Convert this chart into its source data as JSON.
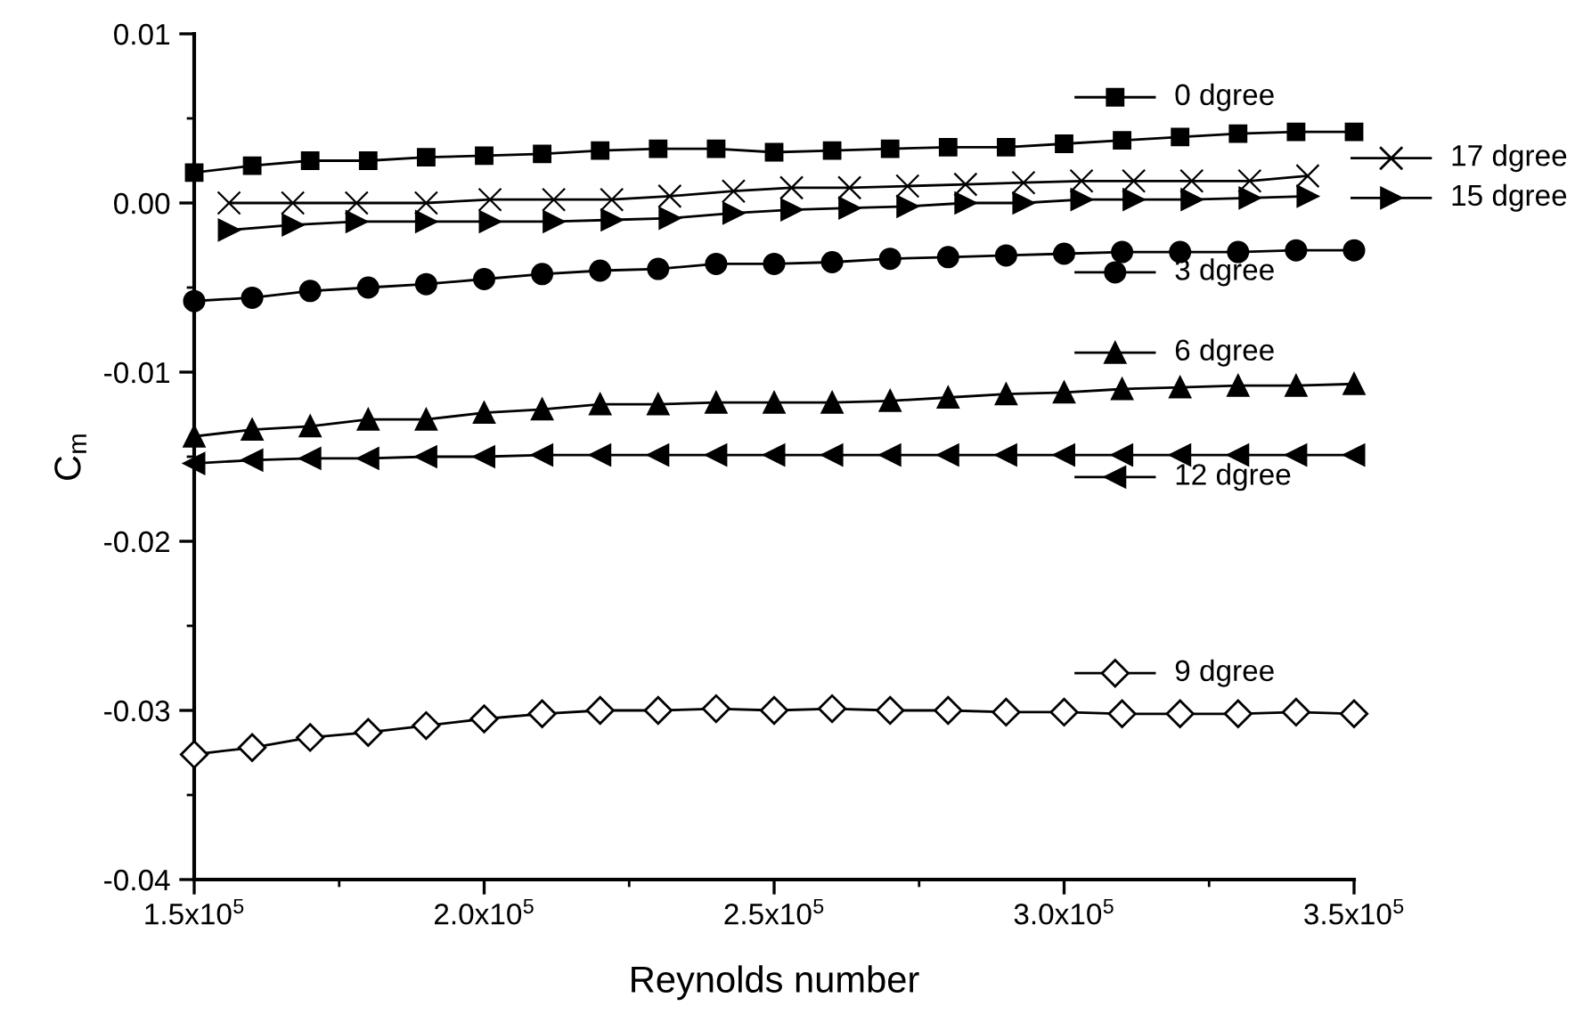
{
  "chart_data": {
    "type": "line",
    "xlabel": "Reynolds number",
    "ylabel": "C$_{m}$",
    "x": [
      150000,
      160000,
      170000,
      180000,
      190000,
      200000,
      210000,
      220000,
      230000,
      240000,
      250000,
      260000,
      270000,
      280000,
      290000,
      300000,
      310000,
      320000,
      330000,
      340000,
      350000
    ],
    "series": [
      {
        "name": "0 dgree",
        "color": "#000000",
        "marker": "square",
        "values": [
          0.0018,
          0.0022,
          0.0025,
          0.0025,
          0.0027,
          0.0028,
          0.0029,
          0.0031,
          0.0032,
          0.0032,
          0.003,
          0.0031,
          0.0032,
          0.0033,
          0.0033,
          0.0035,
          0.0037,
          0.0039,
          0.0041,
          0.0042,
          0.0042
        ]
      },
      {
        "name": "17 dgree",
        "color": "#000000",
        "marker": "cross",
        "x": [
          156000,
          167000,
          178000,
          190000,
          201000,
          212000,
          222000,
          232000,
          243000,
          253000,
          263000,
          273000,
          283000,
          293000,
          303000,
          312000,
          322000,
          332000,
          342000
        ],
        "values": [
          0.0,
          0.0,
          0.0,
          0.0,
          0.0002,
          0.0002,
          0.0002,
          0.0004,
          0.0007,
          0.0009,
          0.0009,
          0.001,
          0.0011,
          0.0012,
          0.0013,
          0.0013,
          0.0013,
          0.0013,
          0.0016
        ]
      },
      {
        "name": "15 dgree",
        "color": "#000000",
        "marker": "triangle-right",
        "x": [
          156000,
          167000,
          178000,
          190000,
          201000,
          212000,
          222000,
          232000,
          243000,
          253000,
          263000,
          273000,
          283000,
          293000,
          303000,
          312000,
          322000,
          332000,
          342000
        ],
        "values": [
          -0.0016,
          -0.0013,
          -0.0011,
          -0.0011,
          -0.0011,
          -0.0011,
          -0.001,
          -0.0009,
          -0.0006,
          -0.0004,
          -0.0003,
          -0.0002,
          0.0,
          0.0,
          0.0002,
          0.0002,
          0.0002,
          0.0003,
          0.0004
        ]
      },
      {
        "name": "3 dgree",
        "color": "#000000",
        "marker": "circle",
        "values": [
          -0.0058,
          -0.0056,
          -0.0052,
          -0.005,
          -0.0048,
          -0.0045,
          -0.0042,
          -0.004,
          -0.0039,
          -0.0036,
          -0.0036,
          -0.0035,
          -0.0033,
          -0.0032,
          -0.0031,
          -0.003,
          -0.0029,
          -0.0029,
          -0.0029,
          -0.0028,
          -0.0028
        ]
      },
      {
        "name": "6 dgree",
        "color": "#000000",
        "marker": "triangle",
        "values": [
          -0.0138,
          -0.0134,
          -0.0132,
          -0.0128,
          -0.0128,
          -0.0124,
          -0.0122,
          -0.0119,
          -0.0119,
          -0.0118,
          -0.0118,
          -0.0118,
          -0.0117,
          -0.0115,
          -0.0113,
          -0.0112,
          -0.011,
          -0.0109,
          -0.0108,
          -0.0108,
          -0.0107
        ]
      },
      {
        "name": "12 dgree",
        "color": "#000000",
        "marker": "triangle-left",
        "values": [
          -0.0154,
          -0.0152,
          -0.0151,
          -0.0151,
          -0.015,
          -0.015,
          -0.0149,
          -0.0149,
          -0.0149,
          -0.0149,
          -0.0149,
          -0.0149,
          -0.0149,
          -0.0149,
          -0.0149,
          -0.0149,
          -0.0149,
          -0.0149,
          -0.0149,
          -0.0149,
          -0.0149
        ]
      },
      {
        "name": "9 dgree",
        "color": "#000000",
        "marker": "diamond",
        "values": [
          -0.0326,
          -0.0322,
          -0.0316,
          -0.0313,
          -0.0309,
          -0.0305,
          -0.0302,
          -0.03,
          -0.03,
          -0.0299,
          -0.03,
          -0.0299,
          -0.03,
          -0.03,
          -0.0301,
          -0.0301,
          -0.0302,
          -0.0302,
          -0.0302,
          -0.0301,
          -0.0302
        ]
      }
    ],
    "xlim": [
      150000,
      350000
    ],
    "xticks": [
      {
        "value": 150000,
        "label": "1.5x10$^{5}$"
      },
      {
        "value": 200000,
        "label": "2.0x10$^{5}$"
      },
      {
        "value": 250000,
        "label": "2.5x10$^{5}$"
      },
      {
        "value": 300000,
        "label": "3.0x10$^{5}$"
      },
      {
        "value": 350000,
        "label": "3.5x10$^{5}$"
      }
    ],
    "ylim": [
      -0.04,
      0.01
    ],
    "yticks": [
      {
        "value": -0.04,
        "label": "-0.04"
      },
      {
        "value": -0.03,
        "label": "-0.03"
      },
      {
        "value": -0.02,
        "label": "-0.02"
      },
      {
        "value": -0.01,
        "label": "-0.01"
      },
      {
        "value": 0.0,
        "label": "0.00"
      },
      {
        "value": 0.01,
        "label": "0.01"
      }
    ],
    "grid": false,
    "legend": "right",
    "line_style": "solid"
  }
}
